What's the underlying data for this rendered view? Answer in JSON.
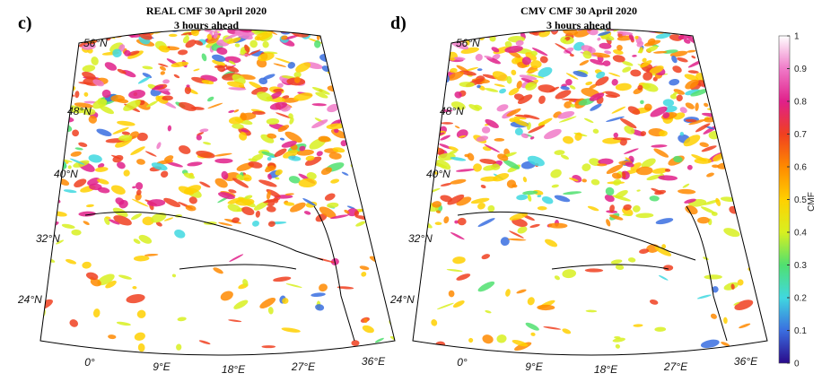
{
  "panels": [
    {
      "label": "c)",
      "title": [
        "REAL CMF 30 April 2020",
        "3 hours ahead"
      ],
      "lat_labels": [
        "56°N",
        "48°N",
        "40°N",
        "32°N",
        "24°N"
      ],
      "lon_labels": [
        "0°",
        "9°E",
        "18°E",
        "27°E",
        "36°E"
      ]
    },
    {
      "label": "d)",
      "title": [
        "CMV CMF 30 April 2020",
        "3 hours ahead"
      ],
      "lat_labels": [
        "56°N",
        "48°N",
        "40°N",
        "32°N",
        "24°N"
      ],
      "lon_labels": [
        "0°",
        "9°E",
        "18°E",
        "27°E",
        "36°E"
      ]
    }
  ],
  "colorbar": {
    "label": "CMF",
    "lim": [
      0,
      1
    ],
    "ticks": [
      0,
      0.1,
      0.2,
      0.3,
      0.4,
      0.5,
      0.6,
      0.7,
      0.8,
      0.9,
      1
    ],
    "colormap": [
      "#2a0a8a",
      "#3a6ee0",
      "#40d8e0",
      "#50e070",
      "#d8f020",
      "#ffd000",
      "#ff8a00",
      "#f04020",
      "#e0208a",
      "#f07ac8",
      "#ffffff"
    ]
  }
}
